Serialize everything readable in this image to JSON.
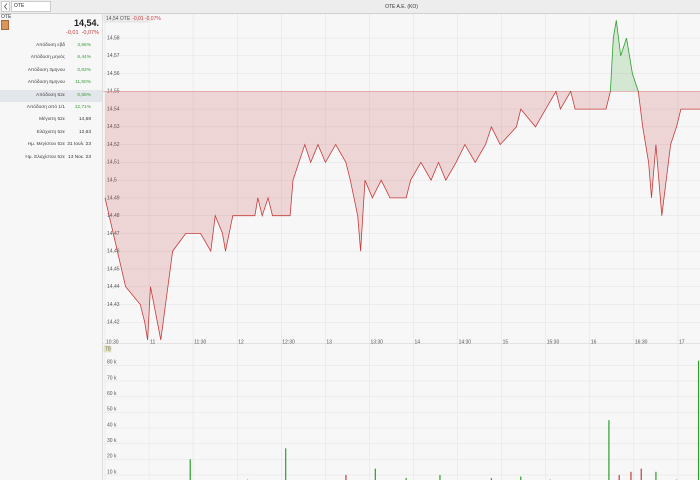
{
  "header": {
    "search": "OTE",
    "title": "OTE A.E. (KO)"
  },
  "quote": {
    "symbol": "OTE",
    "price": "14,54.",
    "change": "-0,01",
    "change_pct": "-0,07%"
  },
  "stats": [
    {
      "label": "Απόδοση εβδ",
      "value": "3,56%",
      "color": "#3a9a3a"
    },
    {
      "label": "Απόδοση μηνός",
      "value": "6,44%",
      "color": "#3a9a3a"
    },
    {
      "label": "Απόδοση 3μηνου",
      "value": "0,83%",
      "color": "#3a9a3a"
    },
    {
      "label": "Απόδοση 6μηνου",
      "value": "11,50%",
      "color": "#3a9a3a"
    },
    {
      "label": "Απόδοση 52ε",
      "value": "0,55%",
      "color": "#3a9a3a"
    },
    {
      "label": "Απόδοση από 1/1",
      "value": "12,71%",
      "color": "#3a9a3a"
    },
    {
      "label": "Μέγιστη 52ε",
      "value": "14,68",
      "color": "#333333"
    },
    {
      "label": "Ελάχιστη 52ε",
      "value": "12,63",
      "color": "#333333"
    },
    {
      "label": "Ημ. Μεγίστου 52ε",
      "value": "31 Ιουλ. 23",
      "color": "#333333"
    },
    {
      "label": "Ημ. Ελαχίστου 52ε",
      "value": "13 Νοε. 23",
      "color": "#333333"
    }
  ],
  "chart_data": [
    {
      "type": "line",
      "annotation": "14,54 OTE",
      "annotation_change": "-0,01 -0,07%",
      "x": [
        "10:30",
        "10:44",
        "10:54",
        "10:57",
        "10:59",
        "11:01",
        "11:08",
        "11:16",
        "11:25",
        "11:35",
        "11:42",
        "11:45",
        "11:50",
        "11:52",
        "11:57",
        "12:12",
        "12:14",
        "12:17",
        "12:21",
        "12:24",
        "12:36",
        "12:38",
        "12:42",
        "12:46",
        "12:50",
        "12:55",
        "13:00",
        "13:07",
        "13:14",
        "13:17",
        "13:22",
        "13:24",
        "13:27",
        "13:32",
        "13:38",
        "13:44",
        "13:55",
        "13:58",
        "14:05",
        "14:12",
        "14:17",
        "14:22",
        "14:29",
        "14:35",
        "14:42",
        "14:49",
        "14:53",
        "14:59",
        "15:10",
        "15:13",
        "15:23",
        "15:30",
        "15:37",
        "15:40",
        "15:47",
        "15:50",
        "16:11",
        "16:14",
        "16:16",
        "16:18",
        "16:21",
        "16:25",
        "16:29",
        "16:33",
        "16:36",
        "16:40",
        "16:42",
        "16:45",
        "16:49",
        "16:52",
        "16:55",
        "16:59",
        "17:02",
        "17:15"
      ],
      "values": [
        14.49,
        14.44,
        14.43,
        14.42,
        14.41,
        14.44,
        14.41,
        14.46,
        14.47,
        14.47,
        14.46,
        14.48,
        14.47,
        14.46,
        14.48,
        14.48,
        14.49,
        14.48,
        14.49,
        14.48,
        14.48,
        14.5,
        14.51,
        14.52,
        14.51,
        14.52,
        14.51,
        14.52,
        14.51,
        14.5,
        14.48,
        14.46,
        14.5,
        14.49,
        14.5,
        14.49,
        14.49,
        14.5,
        14.51,
        14.5,
        14.51,
        14.5,
        14.51,
        14.52,
        14.51,
        14.52,
        14.53,
        14.52,
        14.53,
        14.54,
        14.53,
        14.54,
        14.55,
        14.54,
        14.55,
        14.54,
        14.54,
        14.55,
        14.58,
        14.59,
        14.57,
        14.58,
        14.56,
        14.55,
        14.53,
        14.51,
        14.49,
        14.52,
        14.48,
        14.5,
        14.52,
        14.53,
        14.54,
        14.54
      ],
      "reference": 14.55,
      "up_color": "#2e9e2e",
      "down_color": "#c43c3c",
      "ylim": [
        14.41,
        14.593
      ],
      "yticks": [
        {
          "value": 14.42,
          "label": "14,42"
        },
        {
          "value": 14.43,
          "label": "14,43"
        },
        {
          "value": 14.44,
          "label": "14,44"
        },
        {
          "value": 14.45,
          "label": "14,45"
        },
        {
          "value": 14.46,
          "label": "14,46"
        },
        {
          "value": 14.47,
          "label": "14,47"
        },
        {
          "value": 14.48,
          "label": "14,48"
        },
        {
          "value": 14.49,
          "label": "14,49"
        },
        {
          "value": 14.5,
          "label": "14,5"
        },
        {
          "value": 14.51,
          "label": "14,51"
        },
        {
          "value": 14.52,
          "label": "14,52"
        },
        {
          "value": 14.53,
          "label": "14,53"
        },
        {
          "value": 14.54,
          "label": "14,54"
        },
        {
          "value": 14.55,
          "label": "14,55"
        },
        {
          "value": 14.56,
          "label": "14,56"
        },
        {
          "value": 14.57,
          "label": "14,57"
        },
        {
          "value": 14.58,
          "label": "14,58"
        }
      ],
      "xlim": [
        "10:30",
        "17:15"
      ],
      "xticks": [
        "10:30",
        {
          "value": "11:00",
          "label": "11"
        },
        "11:30",
        {
          "value": "12:00",
          "label": "12"
        },
        "12:30",
        {
          "value": "13:00",
          "label": "13"
        },
        "13:30",
        {
          "value": "14:00",
          "label": "14"
        },
        "14:30",
        {
          "value": "15:00",
          "label": "15"
        },
        "15:30",
        {
          "value": "16:00",
          "label": "16"
        },
        "16:30",
        {
          "value": "17:00",
          "label": "17"
        }
      ],
      "grid": true
    },
    {
      "type": "bar",
      "annotation": "70",
      "x": [
        "10:33",
        "10:47",
        "11:04",
        "11:11",
        "11:28",
        "11:42",
        "11:55",
        "12:07",
        "12:22",
        "12:33",
        "12:43",
        "12:50",
        "13:03",
        "13:14",
        "13:24",
        "13:34",
        "13:44",
        "13:55",
        "14:05",
        "14:18",
        "14:29",
        "14:39",
        "14:53",
        "15:03",
        "15:13",
        "15:23",
        "15:33",
        "15:44",
        "15:54",
        "16:06",
        "16:13",
        "16:20",
        "16:28",
        "16:35",
        "16:45",
        "16:50",
        "16:59",
        "17:09",
        "17:14"
      ],
      "values": [
        4,
        6,
        4,
        2,
        20,
        5,
        3,
        7,
        4,
        27,
        4,
        6,
        3,
        10,
        5,
        14,
        4,
        8,
        5,
        10,
        3,
        6,
        8,
        5,
        9,
        4,
        7,
        3,
        5,
        6,
        45,
        10,
        12,
        14,
        12,
        5,
        7,
        3,
        83
      ],
      "colors": [
        "#999999",
        "#2e9e2e",
        "#2e9e2e",
        "#c43c3c",
        "#2e9e2e",
        "#2e9e2e",
        "#c43c3c",
        "#2e9e2e",
        "#999999",
        "#2e9e2e",
        "#c43c3c",
        "#2e9e2e",
        "#999999",
        "#c43c3c",
        "#2e9e2e",
        "#2e9e2e",
        "#c43c3c",
        "#2e9e2e",
        "#c43c3c",
        "#2e9e2e",
        "#999999",
        "#c43c3c",
        "#2e9e2e",
        "#999999",
        "#2e9e2e",
        "#c43c3c",
        "#2e9e2e",
        "#999999",
        "#2e9e2e",
        "#c43c3c",
        "#2e9e2e",
        "#c43c3c",
        "#c43c3c",
        "#c43c3c",
        "#2e9e2e",
        "#c43c3c",
        "#2e9e2e",
        "#999999",
        "#2e9e2e"
      ],
      "ylim": [
        0,
        93
      ],
      "yticks": [
        {
          "value": 10,
          "label": "10 k"
        },
        {
          "value": 20,
          "label": "20 k"
        },
        {
          "value": 30,
          "label": "30 k"
        },
        {
          "value": 40,
          "label": "40 k"
        },
        {
          "value": 50,
          "label": "50 k"
        },
        {
          "value": 60,
          "label": "60 k"
        },
        {
          "value": 70,
          "label": "70 k"
        },
        {
          "value": 80,
          "label": "80 k"
        }
      ],
      "xlim": [
        "10:30",
        "17:15"
      ],
      "grid": true
    }
  ]
}
